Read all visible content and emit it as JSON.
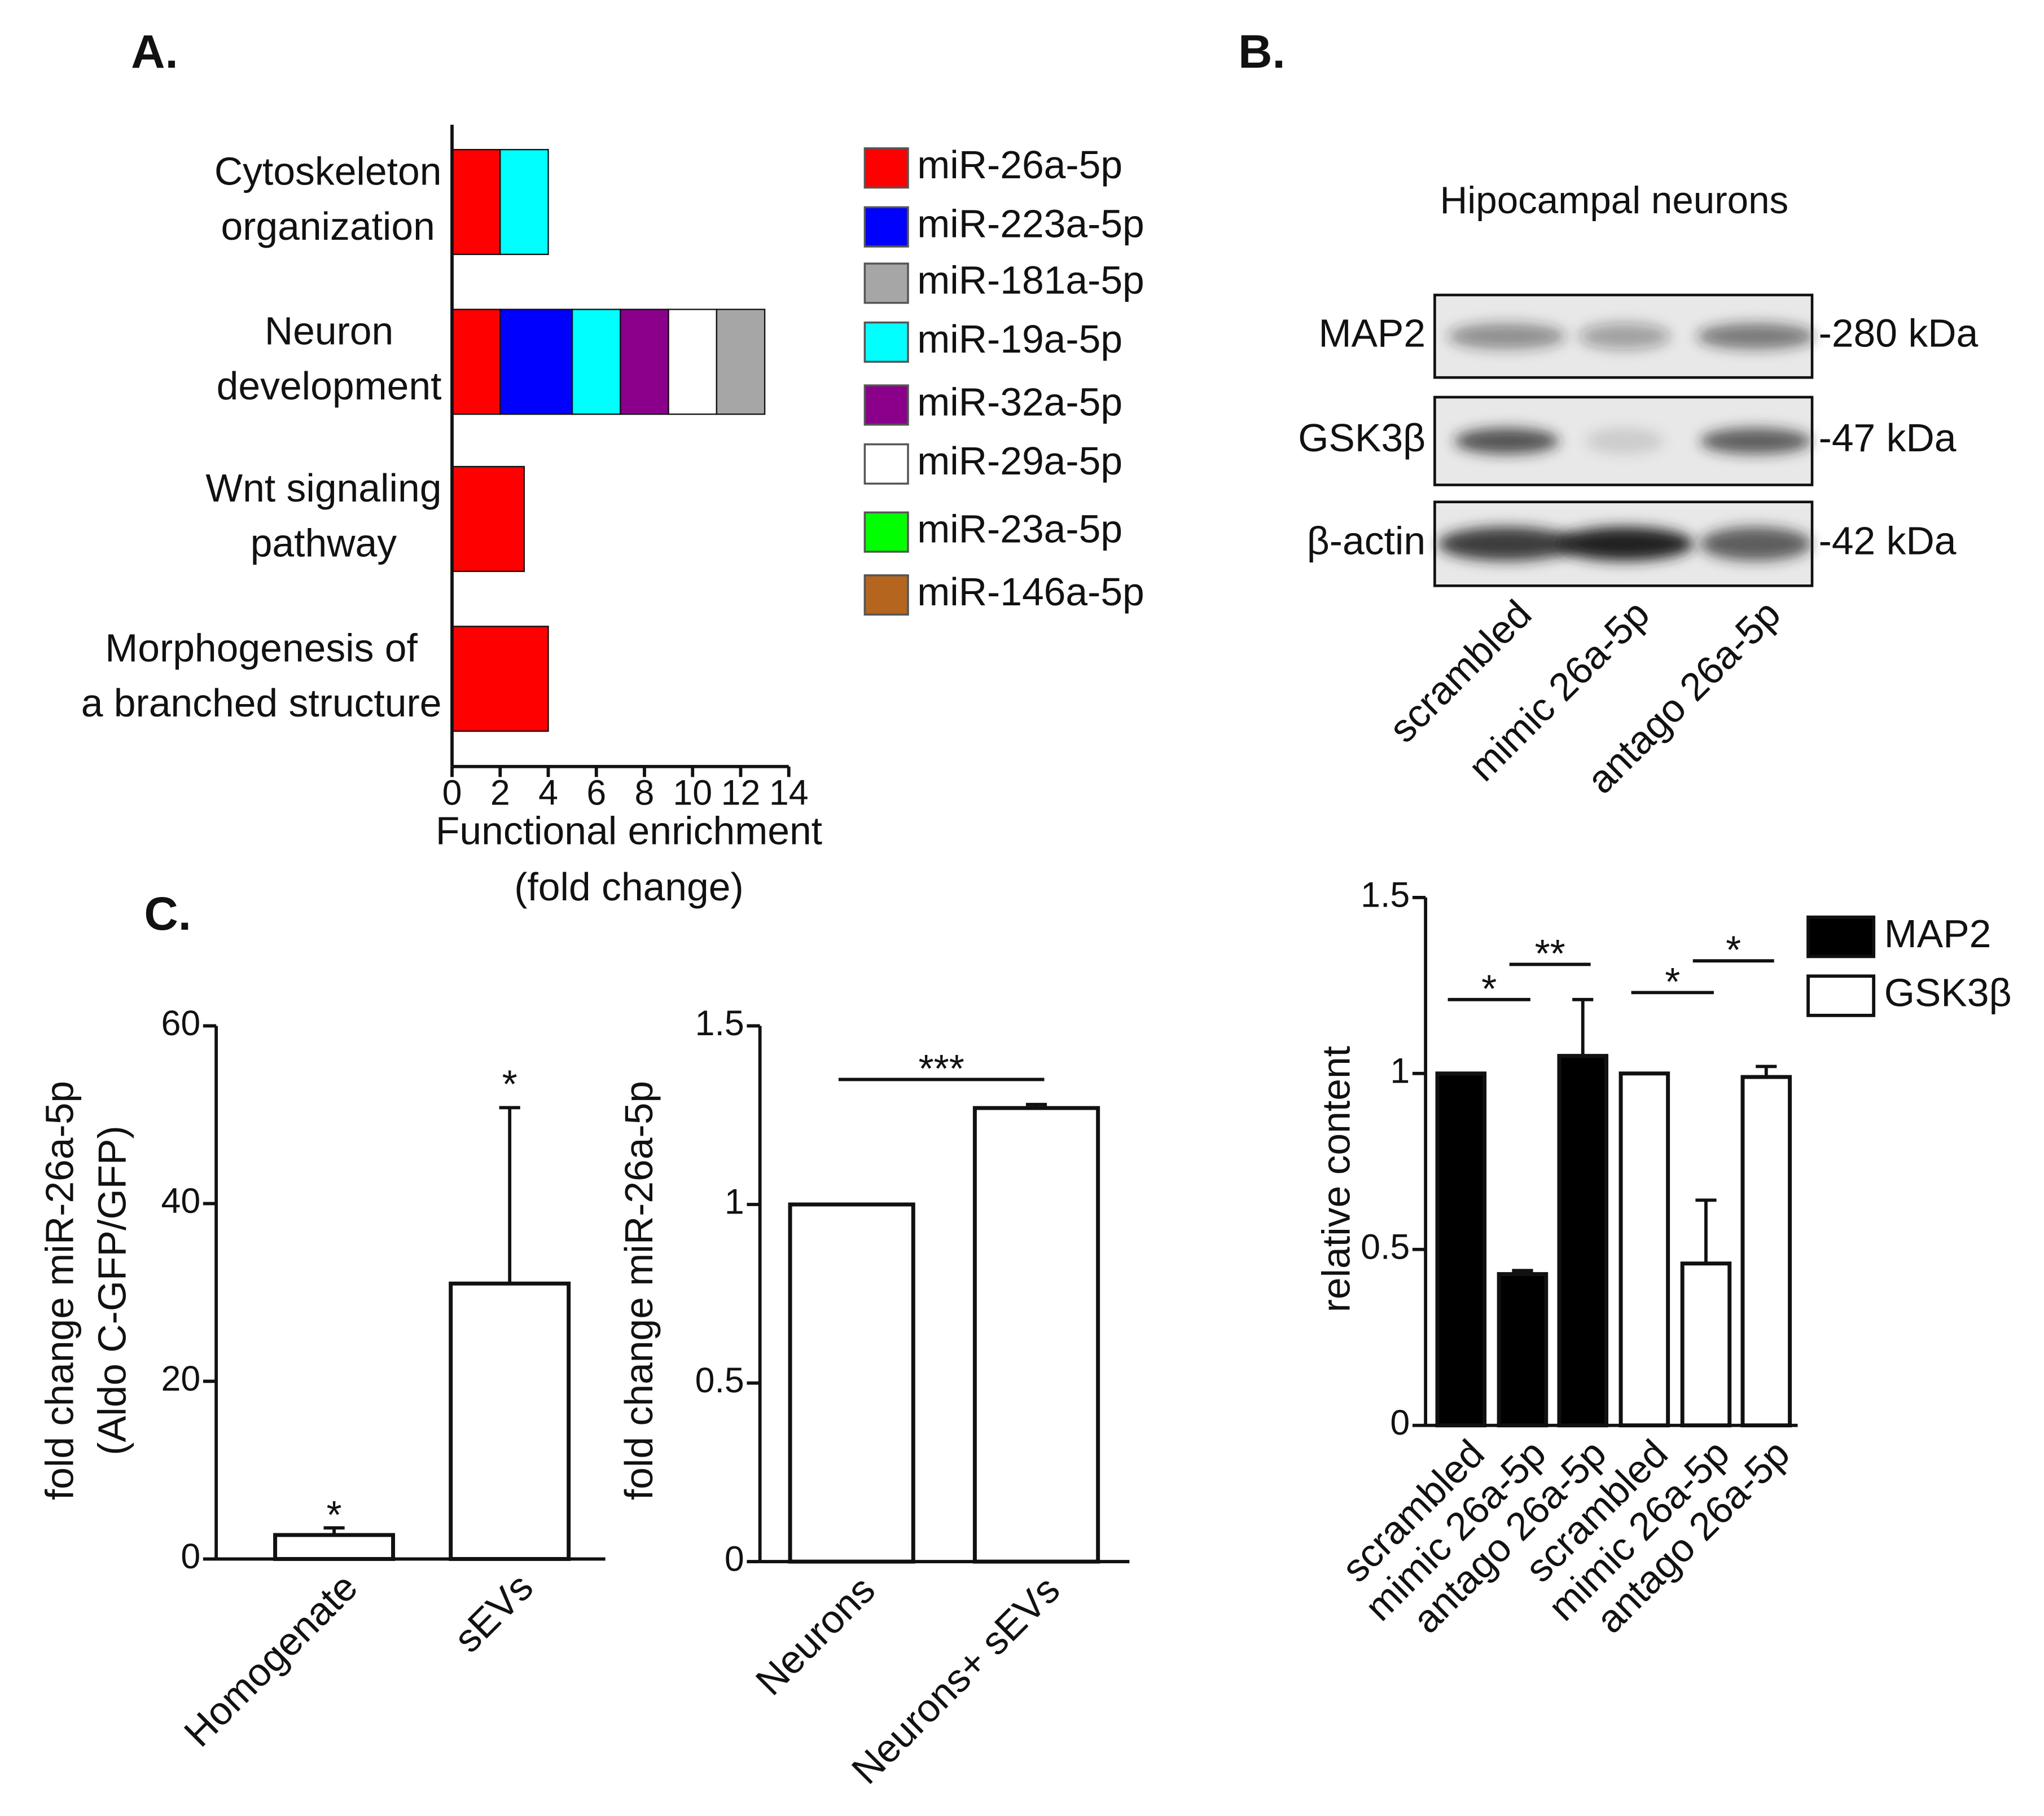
{
  "blot": {
    "title": "Hipocampal neurons",
    "rows": [
      {
        "label": "MAP2",
        "size": "-280 kDa"
      },
      {
        "label": "GSK3β",
        "size": "-47 kDa"
      },
      {
        "label": "β-actin",
        "size": "-42 kDa"
      }
    ],
    "lanes": [
      "scrambled",
      "mimic 26a-5p",
      "antago 26a-5p"
    ]
  },
  "chart_data": [
    {
      "type": "stacked_hbar",
      "panel": "A.",
      "categories": [
        "Cytoskeleton\norganization",
        "Neuron\ndevelopment",
        "Wnt signaling\npathway",
        "Morphogenesis of\na branched structure"
      ],
      "series": [
        {
          "name": "miR-26a-5p",
          "color": "#ff0000",
          "values": [
            2,
            2,
            3,
            4
          ]
        },
        {
          "name": "miR-223a-5p",
          "color": "#0000ff",
          "values": [
            0,
            3,
            0,
            0
          ]
        },
        {
          "name": "miR-181a-5p",
          "color": "#a6a6a6",
          "values": [
            0,
            2,
            0,
            0
          ]
        },
        {
          "name": "miR-19a-5p",
          "color": "#00ffff",
          "values": [
            2,
            2,
            0,
            0
          ]
        },
        {
          "name": "miR-32a-5p",
          "color": "#8b008b",
          "values": [
            0,
            2,
            0,
            0
          ]
        },
        {
          "name": "miR-29a-5p",
          "color": "#ffffff",
          "values": [
            0,
            2,
            0,
            0
          ]
        },
        {
          "name": "miR-23a-5p",
          "color": "#00ff00",
          "values": [
            0,
            0,
            0,
            0
          ]
        },
        {
          "name": "miR-146a-5p",
          "color": "#b5651d",
          "values": [
            0,
            0,
            0,
            0
          ]
        }
      ],
      "stack_order": [
        0,
        1,
        3,
        4,
        5,
        2,
        6,
        7
      ],
      "xlabel": "Functional enrichment\n(fold change)",
      "xlim": [
        0,
        14
      ],
      "xticks": [
        0,
        2,
        4,
        6,
        8,
        10,
        12,
        14
      ]
    },
    {
      "type": "bar",
      "panel": "B.",
      "categories": [
        "scrambled",
        "mimic 26a-5p",
        "antago 26a-5p",
        "scrambled",
        "mimic 26a-5p",
        "antago 26a-5p"
      ],
      "series": [
        {
          "name": "MAP2",
          "color": "#000000",
          "values": [
            1,
            0.43,
            1.05,
            null,
            null,
            null
          ],
          "errors": [
            0,
            0.01,
            0.16,
            null,
            null,
            null
          ]
        },
        {
          "name": "GSK3β",
          "color": "#ffffff",
          "values": [
            null,
            null,
            null,
            1,
            0.46,
            0.99
          ],
          "errors": [
            null,
            null,
            null,
            0,
            0.18,
            0.03
          ]
        }
      ],
      "ylabel": "relative content",
      "ylim": [
        0,
        1.5
      ],
      "yticks": [
        0,
        0.5,
        1,
        1.5
      ],
      "annotations": [
        {
          "text": "*",
          "from": 0,
          "to": 1,
          "y": 1.21
        },
        {
          "text": "**",
          "from": 1,
          "to": 2,
          "y": 1.31
        },
        {
          "text": "*",
          "from": 3,
          "to": 4,
          "y": 1.23
        },
        {
          "text": "*",
          "from": 4,
          "to": 5,
          "y": 1.32
        }
      ]
    },
    {
      "type": "bar",
      "panel": "C.",
      "categories": [
        "Homogenate",
        "sEVs"
      ],
      "values": [
        2.7,
        31
      ],
      "errors": [
        0.8,
        19.8
      ],
      "color": "#ffffff",
      "ylabel": "fold change miR-26a-5p\n(Aldo C-GFP/GFP)",
      "ylim": [
        0,
        60
      ],
      "yticks": [
        0,
        20,
        40,
        60
      ],
      "annotations": [
        {
          "text": "*",
          "from": 0,
          "to": 0,
          "y": 5.5
        },
        {
          "text": "*",
          "from": 1,
          "to": 1,
          "y": 54
        }
      ]
    },
    {
      "type": "bar",
      "categories": [
        "Neurons",
        "Neurons+ sEVs"
      ],
      "values": [
        1,
        1.27
      ],
      "errors": [
        0,
        0.01
      ],
      "color": "#ffffff",
      "ylabel": "fold change miR-26a-5p",
      "ylim": [
        0,
        1.5
      ],
      "yticks": [
        0,
        0.5,
        1,
        1.5
      ],
      "annotations": [
        {
          "text": "***",
          "from": 0,
          "to": 1,
          "y": 1.35
        }
      ]
    }
  ]
}
